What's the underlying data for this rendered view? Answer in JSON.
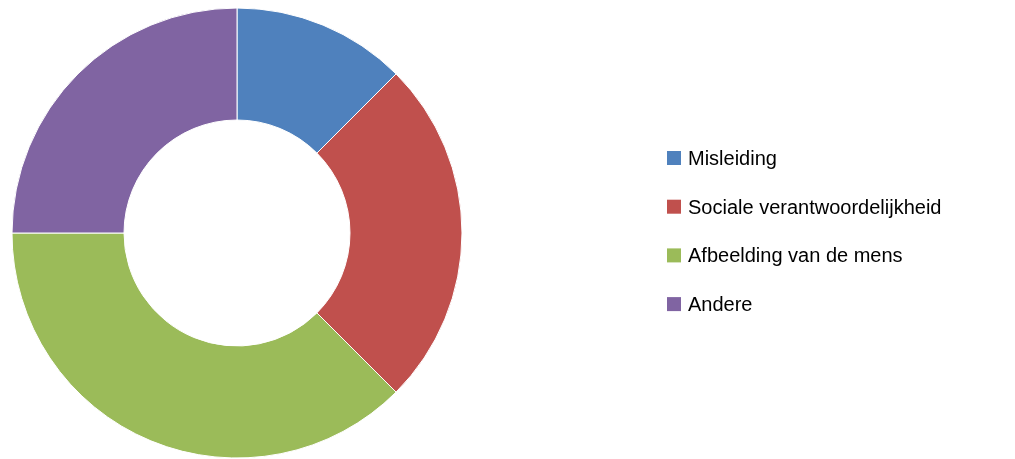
{
  "chart_data": {
    "type": "donut",
    "categories": [
      "Misleiding",
      "Sociale verantwoordelijkheid",
      "Afbeelding van de mens",
      "Andere"
    ],
    "values": [
      12.5,
      25,
      37.5,
      25
    ],
    "colors": [
      "#4f81bd",
      "#c0504d",
      "#9bbb59",
      "#8064a2"
    ],
    "legend": "right"
  }
}
